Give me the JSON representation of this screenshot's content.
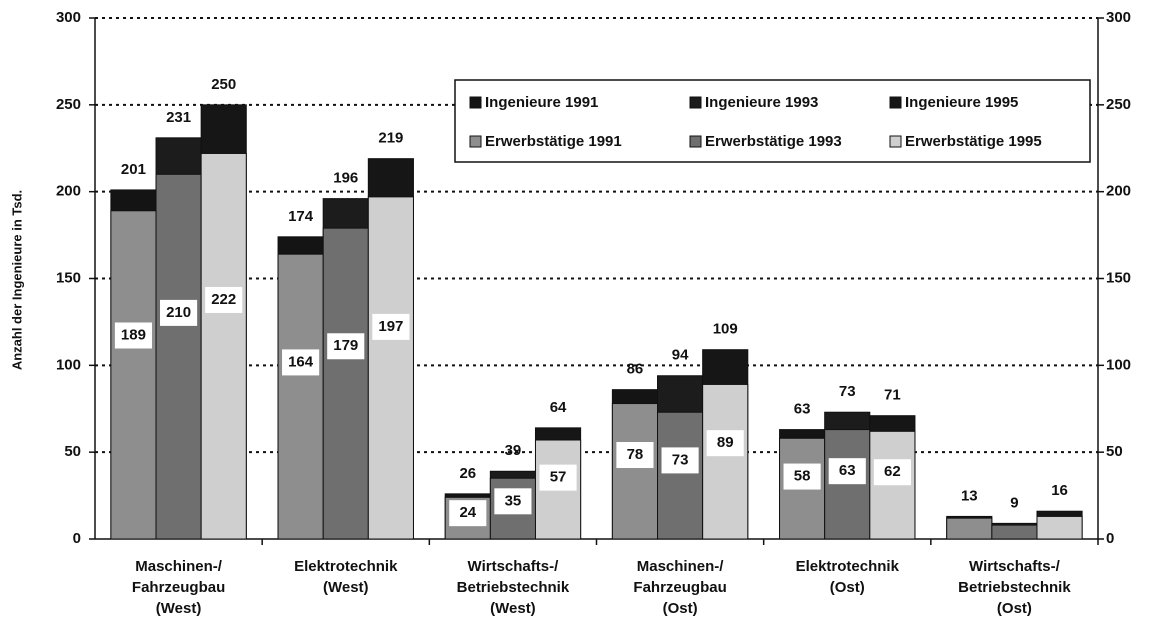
{
  "chart_data": {
    "type": "bar",
    "y_label": "Anzahl der Ingenieure in Tsd.",
    "categories": [
      [
        "Maschinen-/",
        "Fahrzeugbau",
        "(West)"
      ],
      [
        "Elektrotechnik",
        "(West)"
      ],
      [
        "Wirtschafts-/",
        "Betriebstechnik",
        "(West)"
      ],
      [
        "Maschinen-/",
        "Fahrzeugbau",
        "(Ost)"
      ],
      [
        "Elektrotechnik",
        "(Ost)"
      ],
      [
        "Wirtschafts-/",
        "Betriebstechnik",
        "(Ost)"
      ]
    ],
    "series": [
      {
        "name": "Ingenieure 1991",
        "color": "#141414",
        "values": [
          201,
          174,
          26,
          86,
          63,
          13
        ]
      },
      {
        "name": "Ingenieure 1993",
        "color": "#1c1c1c",
        "values": [
          231,
          196,
          39,
          94,
          73,
          9
        ]
      },
      {
        "name": "Ingenieure 1995",
        "color": "#161616",
        "values": [
          250,
          219,
          64,
          109,
          71,
          16
        ]
      },
      {
        "name": "Erwerbstätige 1991",
        "color": "#8e8e8e",
        "values": [
          189,
          164,
          24,
          78,
          58,
          12
        ],
        "value_labels": [
          "189",
          "164",
          "24",
          "78",
          "58",
          null
        ]
      },
      {
        "name": "Erwerbstätige 1993",
        "color": "#6f6f6f",
        "values": [
          210,
          179,
          35,
          73,
          63,
          8
        ],
        "value_labels": [
          "210",
          "179",
          "35",
          "73",
          "63",
          null
        ]
      },
      {
        "name": "Erwerbstätige 1995",
        "color": "#cfcfcf",
        "values": [
          222,
          197,
          57,
          89,
          62,
          13
        ],
        "value_labels": [
          "222",
          "197",
          "57",
          "89",
          "62",
          null
        ]
      }
    ],
    "ylim": [
      0,
      300
    ],
    "yticks": [
      0,
      50,
      100,
      150,
      200,
      250,
      300
    ],
    "y2lim": [
      0,
      300
    ],
    "y2ticks": [
      0,
      50,
      100,
      150,
      200,
      250,
      300
    ],
    "grid": true
  }
}
